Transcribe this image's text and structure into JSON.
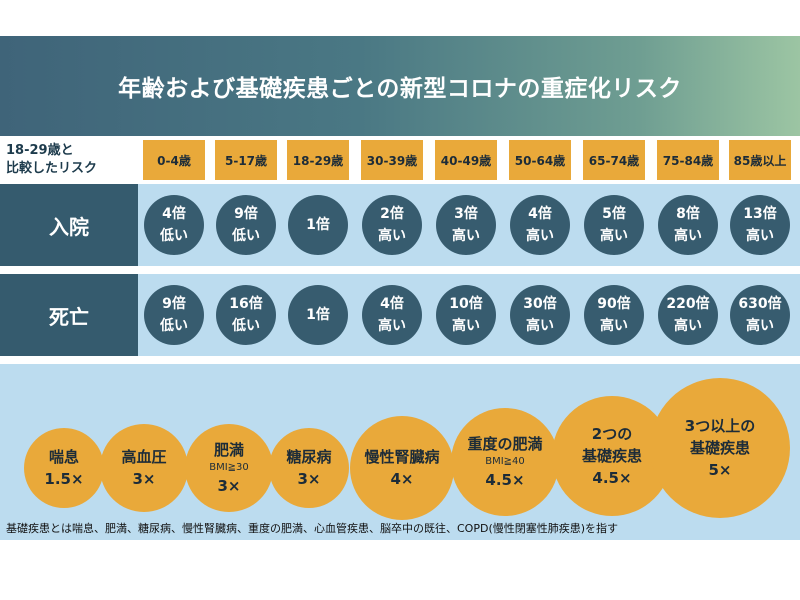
{
  "title": "年齢および基礎疾患ごとの新型コロナの重症化リスク",
  "header": {
    "label_line1": "18-29歳と",
    "label_line2": "比較したリスク",
    "ages": [
      "0-4歳",
      "5-17歳",
      "18-29歳",
      "30-39歳",
      "40-49歳",
      "50-64歳",
      "65-74歳",
      "75-84歳",
      "85歳以上"
    ]
  },
  "rows": {
    "hospitalization": {
      "label": "入院",
      "cells": [
        {
          "multiplier": "4倍",
          "direction": "低い"
        },
        {
          "multiplier": "9倍",
          "direction": "低い"
        },
        {
          "multiplier": "1倍",
          "direction": ""
        },
        {
          "multiplier": "2倍",
          "direction": "高い"
        },
        {
          "multiplier": "3倍",
          "direction": "高い"
        },
        {
          "multiplier": "4倍",
          "direction": "高い"
        },
        {
          "multiplier": "5倍",
          "direction": "高い"
        },
        {
          "multiplier": "8倍",
          "direction": "高い"
        },
        {
          "multiplier": "13倍",
          "direction": "高い"
        }
      ]
    },
    "death": {
      "label": "死亡",
      "cells": [
        {
          "multiplier": "9倍",
          "direction": "低い"
        },
        {
          "multiplier": "16倍",
          "direction": "低い"
        },
        {
          "multiplier": "1倍",
          "direction": ""
        },
        {
          "multiplier": "4倍",
          "direction": "高い"
        },
        {
          "multiplier": "10倍",
          "direction": "高い"
        },
        {
          "multiplier": "30倍",
          "direction": "高い"
        },
        {
          "multiplier": "90倍",
          "direction": "高い"
        },
        {
          "multiplier": "220倍",
          "direction": "高い"
        },
        {
          "multiplier": "630倍",
          "direction": "高い"
        }
      ]
    }
  },
  "conditions": [
    {
      "name": "喘息",
      "sub": "",
      "value": "1.5×"
    },
    {
      "name": "高血圧",
      "sub": "",
      "value": "3×"
    },
    {
      "name": "肥満",
      "sub": "BMI≧30",
      "value": "3×"
    },
    {
      "name": "糖尿病",
      "sub": "",
      "value": "3×"
    },
    {
      "name": "慢性腎臓病",
      "sub": "",
      "value": "4×"
    },
    {
      "name": "重度の肥満",
      "sub": "BMI≧40",
      "value": "4.5×"
    },
    {
      "name": "2つの\n基礎疾患",
      "sub": "",
      "value": "4.5×"
    },
    {
      "name": "3つ以上の\n基礎疾患",
      "sub": "",
      "value": "5×"
    }
  ],
  "footnote": "基礎疾患とは喘息、肥満、糖尿病、慢性腎臓病、重度の肥満、心血管疾患、脳卒中の既往、COPD(慢性閉塞性肺疾患)を指す",
  "colors": {
    "dark_teal": "#355b6e",
    "bubble_fill": "#375c6f",
    "orange": "#e9a93a",
    "light_blue": "#bcdcef"
  }
}
